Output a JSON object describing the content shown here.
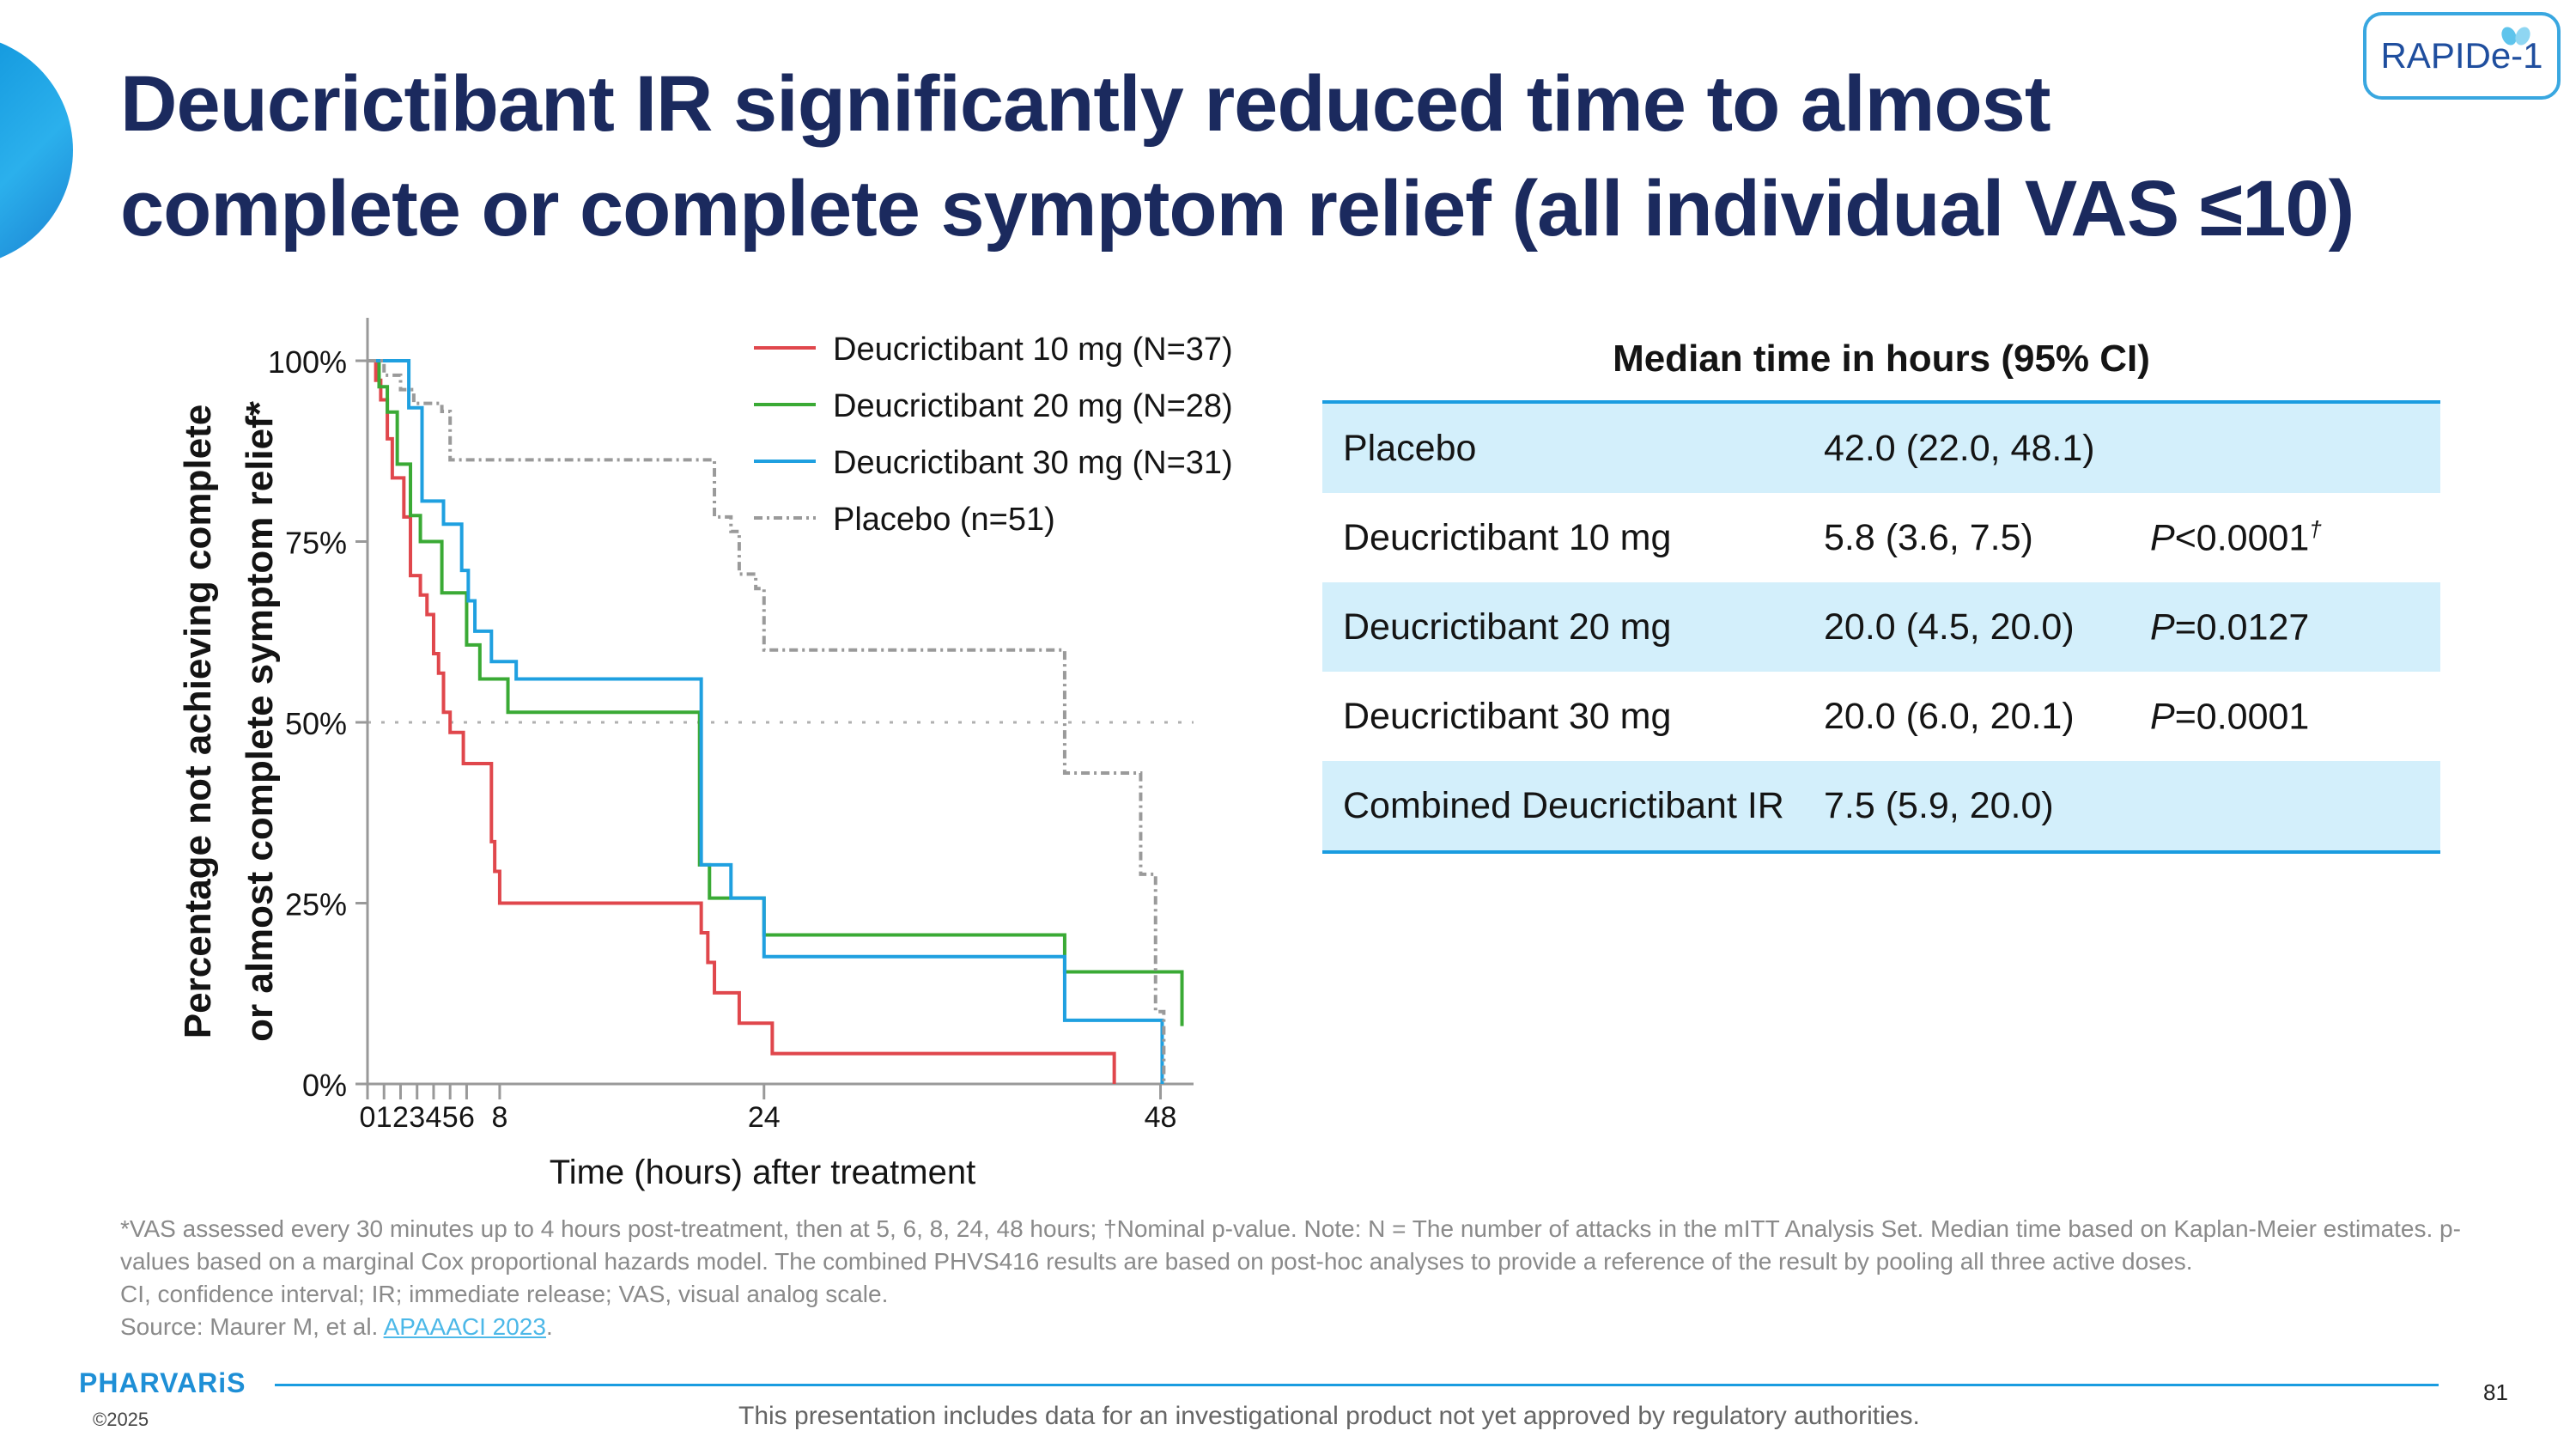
{
  "slide": {
    "title": "Deucrictibant IR significantly reduced time to almost complete or complete symptom relief (all individual VAS ≤10)",
    "badge": "RAPIDe-1",
    "page_number": "81"
  },
  "colors": {
    "title": "#1b2a5e",
    "accent": "#1a9ce0",
    "table_shade": "#d3effb",
    "series_10mg": "#e0474c",
    "series_20mg": "#3aaa35",
    "series_30mg": "#1fa0e0",
    "series_placebo": "#9a9a9a"
  },
  "chart_data": {
    "type": "line",
    "subtype": "kaplan-meier step",
    "xlabel": "Time (hours) after treatment",
    "ylabel_lines": [
      "Percentage not achieving complete",
      "or almost complete symptom relief*"
    ],
    "xlim": [
      0,
      50
    ],
    "ylim": [
      0,
      100
    ],
    "x_ticks": [
      0,
      1,
      2,
      3,
      4,
      5,
      6,
      8,
      24,
      48
    ],
    "x_tick_labels": [
      {
        "x": 0,
        "label": "0"
      },
      {
        "x": 1,
        "label": "1"
      },
      {
        "x": 2,
        "label": "2"
      },
      {
        "x": 3,
        "label": "3"
      },
      {
        "x": 4,
        "label": "4"
      },
      {
        "x": 5,
        "label": "5"
      },
      {
        "x": 6,
        "label": "6"
      },
      {
        "x": 8,
        "label": "8"
      },
      {
        "x": 24,
        "label": "24"
      },
      {
        "x": 48,
        "label": "48"
      }
    ],
    "y_ticks": [
      {
        "y": 0,
        "label": "0%"
      },
      {
        "y": 25,
        "label": "25%"
      },
      {
        "y": 50,
        "label": "50%"
      },
      {
        "y": 75,
        "label": "75%"
      },
      {
        "y": 100,
        "label": "100%"
      }
    ],
    "reference_line_y": 50,
    "legend_position": "top-right",
    "series": [
      {
        "name": "Deucrictibant 10 mg (N=37)",
        "color": "#e0474c",
        "dash": "",
        "points": [
          [
            0,
            100
          ],
          [
            0.5,
            97.3
          ],
          [
            0.8,
            94.6
          ],
          [
            1.2,
            89.2
          ],
          [
            1.5,
            83.8
          ],
          [
            2.2,
            78.4
          ],
          [
            2.6,
            70.3
          ],
          [
            3.2,
            67.6
          ],
          [
            3.6,
            64.9
          ],
          [
            4.0,
            59.5
          ],
          [
            4.3,
            56.8
          ],
          [
            4.6,
            51.4
          ],
          [
            5.0,
            48.6
          ],
          [
            5.8,
            44.3
          ],
          [
            7.5,
            33.5
          ],
          [
            7.7,
            29.4
          ],
          [
            8.0,
            25.0
          ],
          [
            20.0,
            25.0
          ],
          [
            20.2,
            20.9
          ],
          [
            20.6,
            16.8
          ],
          [
            21.0,
            12.6
          ],
          [
            22.5,
            8.4
          ],
          [
            24.5,
            4.2
          ],
          [
            45.0,
            4.2
          ],
          [
            45.2,
            0
          ]
        ]
      },
      {
        "name": "Deucrictibant 20 mg (N=28)",
        "color": "#3aaa35",
        "dash": "",
        "points": [
          [
            0,
            100
          ],
          [
            0.7,
            96.4
          ],
          [
            1.2,
            92.9
          ],
          [
            1.8,
            85.7
          ],
          [
            2.6,
            78.6
          ],
          [
            3.2,
            75.0
          ],
          [
            4.5,
            67.9
          ],
          [
            6.0,
            60.7
          ],
          [
            6.8,
            56.0
          ],
          [
            8.5,
            51.4
          ],
          [
            20.0,
            51.4
          ],
          [
            20.1,
            30.3
          ],
          [
            20.7,
            25.7
          ],
          [
            24.0,
            20.6
          ],
          [
            42.0,
            20.6
          ],
          [
            42.2,
            15.5
          ],
          [
            49.0,
            15.5
          ],
          [
            49.3,
            8.0
          ]
        ]
      },
      {
        "name": "Deucrictibant 30 mg (N=31)",
        "color": "#1fa0e0",
        "dash": "",
        "points": [
          [
            0,
            100
          ],
          [
            2.5,
            93.5
          ],
          [
            3.3,
            80.6
          ],
          [
            4.6,
            77.4
          ],
          [
            5.7,
            71.0
          ],
          [
            6.1,
            66.8
          ],
          [
            6.5,
            62.6
          ],
          [
            7.5,
            58.4
          ],
          [
            9.0,
            56.0
          ],
          [
            20.0,
            56.0
          ],
          [
            20.2,
            30.3
          ],
          [
            22.0,
            25.7
          ],
          [
            24.0,
            17.6
          ],
          [
            42.0,
            17.6
          ],
          [
            42.2,
            8.8
          ],
          [
            48.0,
            8.8
          ],
          [
            48.1,
            0
          ]
        ]
      },
      {
        "name": "Placebo (n=51)",
        "color": "#9a9a9a",
        "dash": "10,5,3,5",
        "points": [
          [
            0,
            100
          ],
          [
            1.0,
            98.0
          ],
          [
            2.0,
            96.0
          ],
          [
            2.8,
            94.1
          ],
          [
            4.5,
            93.0
          ],
          [
            5.0,
            86.3
          ],
          [
            20.8,
            86.3
          ],
          [
            21.0,
            78.4
          ],
          [
            22.0,
            76.4
          ],
          [
            22.5,
            70.5
          ],
          [
            23.5,
            68.5
          ],
          [
            24.0,
            60.0
          ],
          [
            42.0,
            60.0
          ],
          [
            42.2,
            43.0
          ],
          [
            45.5,
            43.0
          ],
          [
            46.8,
            29.0
          ],
          [
            47.5,
            29.0
          ],
          [
            47.7,
            10.0
          ],
          [
            48.2,
            0
          ]
        ]
      }
    ]
  },
  "table": {
    "header": "Median time in hours (95% CI)",
    "rows": [
      {
        "group": "Placebo",
        "median": "42.0 (22.0, 48.1)",
        "p_prefix": "",
        "p_value": "",
        "p_mark": ""
      },
      {
        "group": "Deucrictibant 10 mg",
        "median": "5.8 (3.6, 7.5)",
        "p_prefix": "P",
        "p_value": "<0.0001",
        "p_mark": "†"
      },
      {
        "group": "Deucrictibant 20 mg",
        "median": "20.0 (4.5, 20.0)",
        "p_prefix": "P",
        "p_value": "=0.0127",
        "p_mark": ""
      },
      {
        "group": "Deucrictibant 30 mg",
        "median": "20.0 (6.0, 20.1)",
        "p_prefix": "P",
        "p_value": "=0.0001",
        "p_mark": ""
      },
      {
        "group": "Combined Deucrictibant IR",
        "median": "7.5 (5.9, 20.0)",
        "p_prefix": "",
        "p_value": "",
        "p_mark": ""
      }
    ]
  },
  "footnotes": {
    "line1": "*VAS assessed every 30 minutes up to 4 hours post-treatment, then at 5, 6, 8, 24, 48 hours; †Nominal p-value. Note: N = The number of attacks in the mITT Analysis Set. Median time based on Kaplan-Meier estimates. p-values based on a marginal Cox proportional hazards model. The combined PHVS416 results are based on post-hoc analyses to provide a reference of the result by pooling all three active doses.",
    "line2": "CI, confidence interval; IR; immediate release; VAS, visual analog scale.",
    "source_prefix": "Source: Maurer M, et al. ",
    "source_link": "APAAACI 2023",
    "source_suffix": "."
  },
  "footer": {
    "logo": "PHARVARiS",
    "copyright": "©2025",
    "disclaimer": "This presentation includes data for an investigational product not yet approved by regulatory authorities."
  }
}
